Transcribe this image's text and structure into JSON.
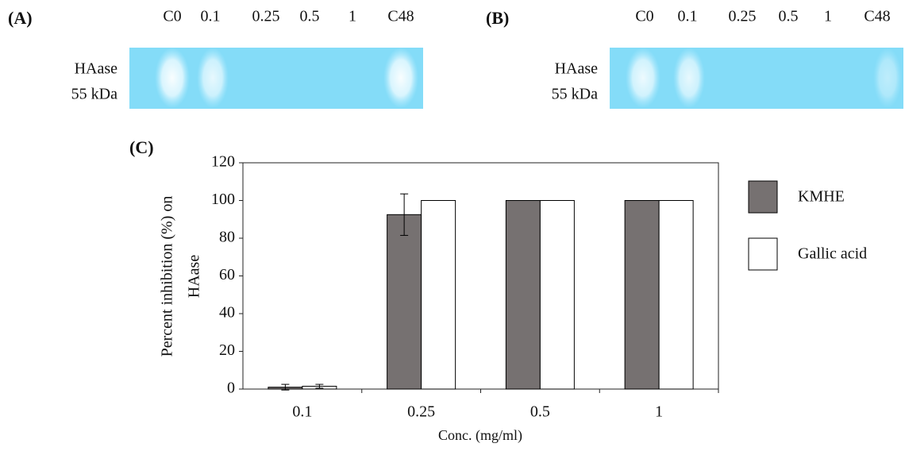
{
  "panels": [
    {
      "label": "(A)",
      "lanes": [
        "C0",
        "0.1",
        "0.25",
        "0.5",
        "1",
        "C48"
      ],
      "band_label": [
        "HAase",
        "55 kDa"
      ]
    },
    {
      "label": "(B)",
      "lanes": [
        "C0",
        "0.1",
        "0.25",
        "0.5",
        "1",
        "C48"
      ],
      "band_label": [
        "HAase",
        "55 kDa"
      ]
    }
  ],
  "chart_data": {
    "type": "bar",
    "label": "(C)",
    "ylabel": [
      "Percent inhibition (%) on",
      "HAase"
    ],
    "xlabel": "Conc. (mg/ml)",
    "categories": [
      "0.1",
      "0.25",
      "0.5",
      "1"
    ],
    "series": [
      {
        "name": "KMHE",
        "color": "#767171",
        "values": [
          1,
          92.5,
          100,
          100
        ],
        "errors": [
          1.5,
          11,
          0,
          0
        ]
      },
      {
        "name": "Gallic acid",
        "color": "#ffffff",
        "values": [
          1.5,
          100,
          100,
          100
        ],
        "errors": [
          1,
          0,
          0,
          0
        ]
      }
    ],
    "ylim": [
      0,
      120
    ],
    "yticks": [
      0,
      20,
      40,
      60,
      80,
      100,
      120
    ],
    "legend": "right"
  }
}
